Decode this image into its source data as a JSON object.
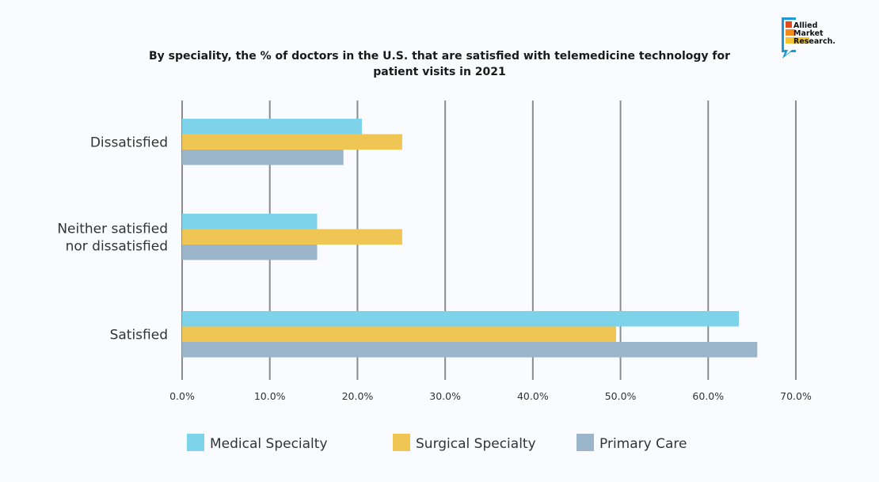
{
  "chart_data": {
    "type": "bar",
    "orientation": "horizontal",
    "title": "By speciality, the % of doctors in the U.S. that are satisfied with telemedicine technology for patient visits in 2021",
    "title_lines": [
      "By speciality, the % of doctors in the U.S. that are satisfied with telemedicine technology for",
      "patient visits in 2021"
    ],
    "categories": [
      "Dissatisfied",
      "Neither satisfied nor dissatisfied",
      "Satisfied"
    ],
    "category_lines": [
      [
        "Dissatisfied"
      ],
      [
        "Neither satisfied",
        "nor dissatisfied"
      ],
      [
        "Satisfied"
      ]
    ],
    "series": [
      {
        "name": "Medical Specialty",
        "color": "#7dd3ea",
        "values": [
          20.5,
          15.4,
          63.5
        ]
      },
      {
        "name": "Surgical Specialty",
        "color": "#efc654",
        "values": [
          25.1,
          25.1,
          49.5
        ]
      },
      {
        "name": "Primary Care",
        "color": "#9bb5ca",
        "values": [
          18.4,
          15.4,
          65.6
        ]
      }
    ],
    "xlim": [
      0,
      70
    ],
    "xticks": [
      "0.0%",
      "10.0%",
      "20.0%",
      "30.0%",
      "40.0%",
      "50.0%",
      "60.0%",
      "70.0%"
    ],
    "grid": "vertical",
    "legend": "bottom",
    "unit": "%"
  },
  "logo": {
    "text": [
      "Allied",
      "Market",
      "Research."
    ]
  }
}
